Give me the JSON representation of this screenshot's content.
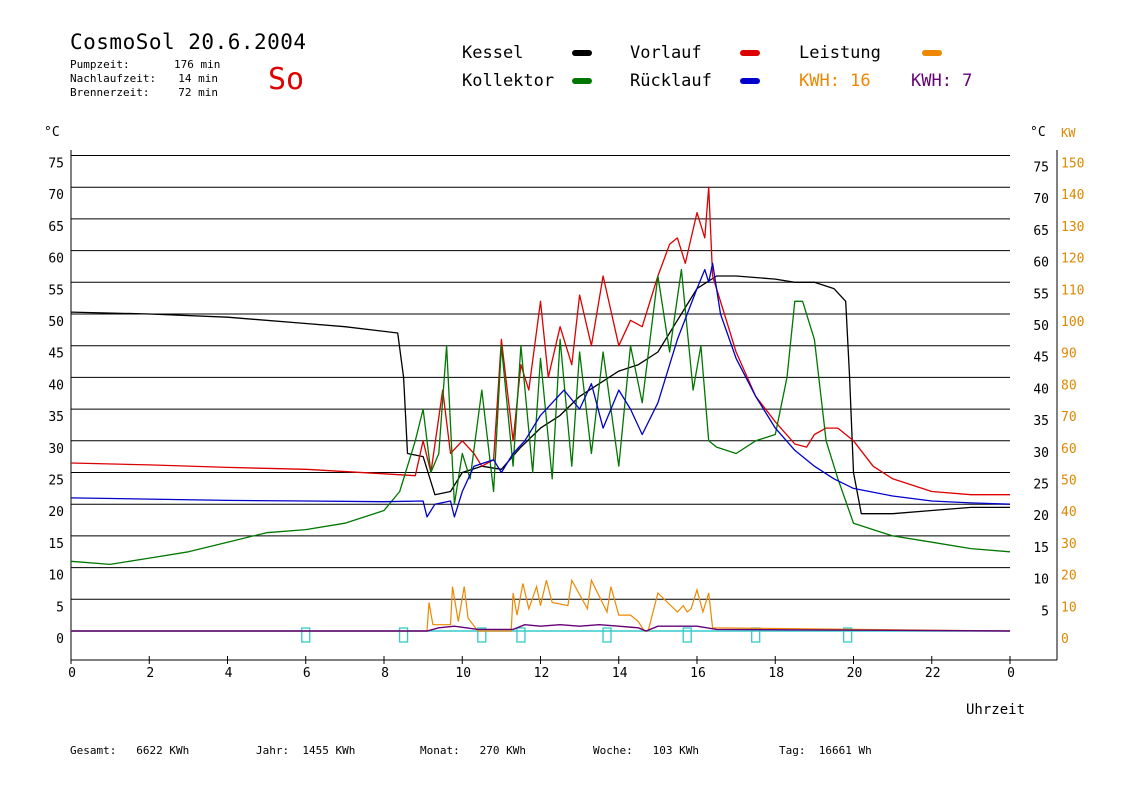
{
  "header": {
    "title": "CosmoSol 20.6.2004",
    "weekday": "So",
    "stats": [
      {
        "label": "Pumpzeit:",
        "value": "176 min"
      },
      {
        "label": "Nachlaufzeit:",
        "value": "14 min"
      },
      {
        "label": "Brennerzeit:",
        "value": "72 min"
      }
    ]
  },
  "legend": {
    "kessel": "Kessel",
    "vorlauf": "Vorlauf",
    "leistung": "Leistung",
    "kollektor": "Kollektor",
    "ruecklauf": "Rücklauf",
    "kwh_solar": "KWH: 16",
    "kwh_burner": "KWH: 7"
  },
  "footer": [
    {
      "label": "Gesamt:",
      "value": "6622 KWh"
    },
    {
      "label": "Jahr:",
      "value": "1455 KWh"
    },
    {
      "label": "Monat:",
      "value": "270 KWh"
    },
    {
      "label": "Woche:",
      "value": "103 KWh"
    },
    {
      "label": "Tag:",
      "value": "16661 Wh"
    }
  ],
  "colors": {
    "kessel": "#000000",
    "vorlauf": "#dd0000",
    "leistung": "#ee8800",
    "kollektor": "#007700",
    "ruecklauf": "#0000cc",
    "kwh_burner": "#660077",
    "pump": "#33cccc",
    "kw_axis": "#dd8800",
    "weekday": "#e00000"
  },
  "chart_data": {
    "type": "line",
    "xlabel": "Uhrzeit",
    "ylabel_left": "°C",
    "ylabel_right_c": "°C",
    "ylabel_right_kw": "KW",
    "xlim": [
      0,
      24
    ],
    "ylim": [
      -5,
      80
    ],
    "x_ticks": [
      "0",
      "2",
      "4",
      "6",
      "8",
      "10",
      "12",
      "14",
      "16",
      "18",
      "20",
      "22",
      "0"
    ],
    "y_ticks_left": [
      "0",
      "5",
      "10",
      "15",
      "20",
      "25",
      "30",
      "35",
      "40",
      "45",
      "50",
      "55",
      "60",
      "65",
      "70",
      "75"
    ],
    "y_ticks_right_c": [
      "5",
      "10",
      "15",
      "20",
      "25",
      "30",
      "35",
      "40",
      "45",
      "50",
      "55",
      "60",
      "65",
      "70",
      "75"
    ],
    "y_ticks_kw": [
      "0",
      "10",
      "20",
      "30",
      "40",
      "50",
      "60",
      "70",
      "80",
      "90",
      "100",
      "110",
      "120",
      "130",
      "140",
      "150"
    ],
    "grid": true,
    "series": [
      {
        "name": "Kessel",
        "x": [
          0,
          2,
          4,
          6,
          7,
          8.35,
          8.5,
          8.6,
          9,
          9.3,
          9.7,
          10,
          10.5,
          11,
          11.5,
          12,
          12.5,
          13,
          13.5,
          14,
          14.5,
          15,
          15.5,
          16,
          16.5,
          17,
          18,
          18.5,
          19,
          19.5,
          19.8,
          19.9,
          20,
          20.2,
          21,
          22,
          23,
          24
        ],
        "y": [
          50.3,
          50,
          49.5,
          48.5,
          48,
          47,
          40,
          28,
          27.5,
          21.5,
          22,
          25,
          26,
          25.5,
          29,
          32,
          34,
          37,
          39,
          41,
          42,
          44,
          49,
          54,
          56,
          56,
          55.5,
          55,
          55,
          54,
          52,
          40,
          25,
          18.5,
          18.5,
          19,
          19.5,
          19.5
        ]
      },
      {
        "name": "Vorlauf",
        "x": [
          0,
          2,
          4,
          6,
          8,
          8.8,
          9.0,
          9.2,
          9.5,
          9.7,
          10,
          10.3,
          10.5,
          10.8,
          11,
          11.3,
          11.5,
          11.7,
          12,
          12.2,
          12.5,
          12.8,
          13,
          13.3,
          13.6,
          14,
          14.3,
          14.6,
          15,
          15.3,
          15.5,
          15.7,
          16,
          16.2,
          16.3,
          16.4,
          16.7,
          17,
          17.5,
          18,
          18.5,
          18.8,
          19,
          19.3,
          19.6,
          20,
          20.5,
          21,
          22,
          23,
          24
        ],
        "y": [
          26.5,
          26.2,
          25.8,
          25.5,
          24.8,
          24.5,
          30,
          25,
          38,
          28,
          30,
          28,
          26,
          27,
          46,
          30,
          42,
          38,
          52,
          40,
          48,
          42,
          53,
          45,
          56,
          45,
          49,
          48,
          56,
          61,
          62,
          58,
          66,
          62,
          70,
          56,
          50,
          44,
          37,
          33,
          29.5,
          29,
          31,
          32,
          32,
          30,
          26,
          24,
          22,
          21.5,
          21.5
        ]
      },
      {
        "name": "Kollektor",
        "x": [
          0,
          1,
          2,
          3,
          4,
          5,
          6,
          7,
          8,
          8.4,
          8.8,
          9.0,
          9.2,
          9.4,
          9.6,
          9.8,
          10,
          10.2,
          10.5,
          10.8,
          11,
          11.3,
          11.5,
          11.8,
          12,
          12.3,
          12.5,
          12.8,
          13,
          13.3,
          13.6,
          14,
          14.3,
          14.6,
          15,
          15.3,
          15.6,
          15.9,
          16.1,
          16.3,
          16.5,
          17,
          17.5,
          18,
          18.3,
          18.5,
          18.7,
          19,
          19.3,
          19.6,
          20,
          20.5,
          21,
          22,
          23,
          24
        ],
        "y": [
          11,
          10.5,
          11.5,
          12.5,
          14,
          15.5,
          16,
          17,
          19,
          22,
          30,
          35,
          25,
          28,
          45,
          20,
          28,
          24,
          38,
          22,
          45,
          26,
          45,
          25,
          43,
          24,
          46,
          26,
          44,
          28,
          44,
          26,
          45,
          36,
          56,
          44,
          57,
          38,
          45,
          30,
          29,
          28,
          30,
          31,
          40,
          52,
          52,
          46,
          30,
          24,
          17,
          16,
          15,
          14,
          13,
          12.5
        ]
      },
      {
        "name": "Rücklauf",
        "x": [
          0,
          2,
          4,
          6,
          8,
          9.0,
          9.1,
          9.3,
          9.7,
          9.8,
          10,
          10.3,
          10.8,
          11,
          11.3,
          11.6,
          12,
          12.3,
          12.6,
          13,
          13.3,
          13.6,
          14,
          14.3,
          14.6,
          15,
          15.5,
          16,
          16.2,
          16.3,
          16.4,
          16.6,
          17,
          17.5,
          18,
          18.5,
          19,
          19.5,
          20,
          21,
          22,
          23,
          24
        ],
        "y": [
          21,
          20.8,
          20.6,
          20.5,
          20.4,
          20.5,
          18,
          20,
          20.5,
          18,
          22,
          26,
          27,
          25,
          28,
          30,
          34,
          36,
          38,
          35,
          39,
          32,
          38,
          35,
          31,
          36,
          46,
          54,
          57,
          55,
          58,
          50,
          43,
          37,
          32,
          28.5,
          26,
          24,
          22.5,
          21.3,
          20.5,
          20.2,
          20
        ]
      }
    ],
    "power_kw": {
      "x": [
        0,
        9.1,
        9.15,
        9.25,
        9.7,
        9.75,
        9.9,
        10.05,
        10.15,
        10.4,
        11.25,
        11.3,
        11.4,
        11.55,
        11.7,
        11.9,
        12.0,
        12.15,
        12.3,
        12.7,
        12.8,
        13.2,
        13.3,
        13.7,
        13.8,
        14.0,
        14.3,
        14.5,
        14.65,
        14.75,
        15.0,
        15.5,
        15.65,
        15.75,
        15.85,
        16.0,
        16.15,
        16.3,
        16.4,
        24
      ],
      "y": [
        0,
        0,
        9,
        2,
        2,
        14,
        3,
        14,
        4,
        0,
        0,
        12,
        5,
        15,
        7,
        14,
        8,
        16,
        9,
        8,
        16,
        7,
        16,
        6,
        14,
        5,
        5,
        3,
        0,
        0,
        12,
        6,
        8,
        6,
        7,
        13,
        6,
        12,
        1,
        0
      ]
    },
    "energy_kwh_profile": {
      "x": [
        0,
        9.1,
        9.4,
        9.8,
        10.4,
        11.3,
        11.6,
        12.0,
        12.5,
        13.0,
        13.5,
        14.0,
        14.5,
        14.7,
        15.0,
        15.5,
        16.0,
        16.5,
        24
      ],
      "y": [
        0,
        0,
        1,
        1.5,
        0.5,
        0.5,
        2,
        1.5,
        2,
        1.5,
        2,
        1.5,
        1,
        0,
        1.5,
        1.5,
        1.5,
        0.5,
        0
      ]
    },
    "pump_markers_h": [
      6.0,
      8.5,
      10.5,
      11.5,
      13.7,
      15.75,
      17.5,
      19.85
    ]
  }
}
